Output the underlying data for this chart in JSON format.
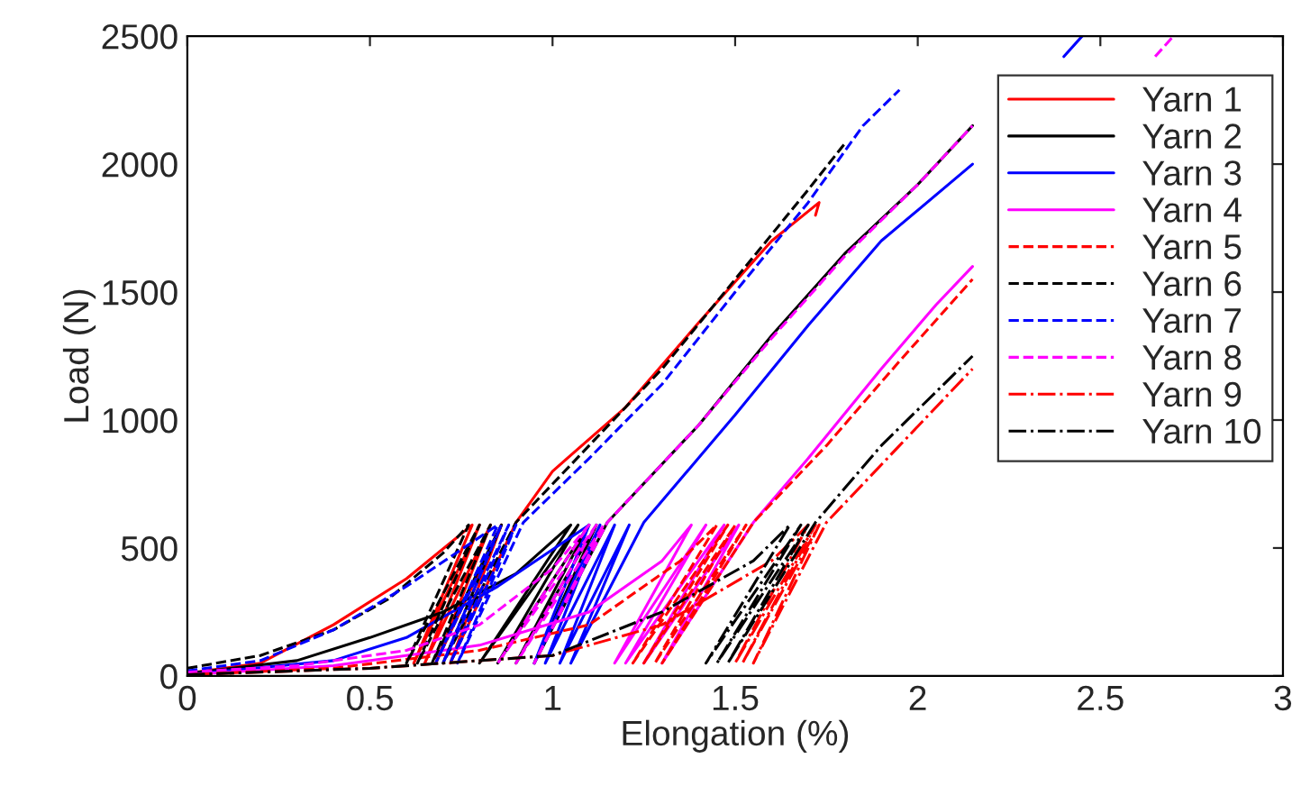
{
  "chart_data": {
    "type": "line",
    "xlabel": "Elongation (%)",
    "ylabel": "Load (N)",
    "xlim": [
      0,
      3
    ],
    "ylim": [
      0,
      2500
    ],
    "xticks": [
      0,
      0.5,
      1,
      1.5,
      2,
      2.5,
      3
    ],
    "yticks": [
      0,
      500,
      1000,
      1500,
      2000,
      2500
    ],
    "grid": false,
    "legend": "top right",
    "series": [
      {
        "name": "Yarn 1",
        "color": "#ff0000",
        "line_style": "solid",
        "x": [
          0,
          0.2,
          0.4,
          0.6,
          0.78,
          0.62,
          0.8,
          0.65,
          0.83,
          0.68,
          0.86,
          0.72,
          0.9,
          1.0,
          1.2,
          1.4,
          1.6,
          1.73,
          1.72
        ],
        "values": [
          10,
          50,
          200,
          380,
          590,
          50,
          590,
          50,
          590,
          50,
          590,
          50,
          600,
          800,
          1050,
          1380,
          1700,
          1850,
          1800
        ]
      },
      {
        "name": "Yarn 2",
        "color": "#000000",
        "line_style": "solid",
        "x": [
          0,
          0.3,
          0.5,
          0.7,
          0.9,
          1.05,
          0.8,
          1.07,
          0.85,
          1.1,
          0.9,
          1.12,
          0.95,
          1.15,
          1.4,
          1.6,
          1.8,
          2.0,
          2.15
        ],
        "values": [
          10,
          60,
          150,
          250,
          400,
          590,
          50,
          590,
          50,
          590,
          50,
          590,
          50,
          600,
          980,
          1330,
          1650,
          1920,
          2150
        ]
      },
      {
        "name": "Yarn 3",
        "color": "#0000ff",
        "line_style": "solid",
        "x": [
          0,
          0.4,
          0.6,
          0.85,
          1.1,
          0.95,
          1.13,
          0.98,
          1.17,
          1.02,
          1.21,
          1.05,
          1.25,
          1.5,
          1.7,
          1.9,
          2.15,
          2.3,
          2.4,
          2.45
        ],
        "values": [
          5,
          60,
          150,
          350,
          590,
          50,
          590,
          50,
          590,
          50,
          590,
          50,
          600,
          1020,
          1370,
          1700,
          2000,
          null,
          2420,
          2500
        ]
      },
      {
        "name": "Yarn 4",
        "color": "#ff00ff",
        "line_style": "solid",
        "x": [
          0,
          0.4,
          0.8,
          1.1,
          1.3,
          1.38,
          1.17,
          1.42,
          1.2,
          1.47,
          1.25,
          1.51,
          1.3,
          1.55,
          1.7,
          1.9,
          2.05,
          2.15
        ],
        "values": [
          5,
          40,
          120,
          250,
          450,
          590,
          50,
          590,
          50,
          590,
          50,
          590,
          50,
          600,
          850,
          1200,
          1450,
          1600
        ]
      },
      {
        "name": "Yarn 5",
        "color": "#ff0000",
        "line_style": "dashed",
        "x": [
          0,
          0.4,
          0.8,
          1.1,
          1.35,
          1.45,
          1.22,
          1.48,
          1.25,
          1.5,
          1.28,
          1.53,
          1.3,
          1.55,
          1.75,
          1.95,
          2.15
        ],
        "values": [
          5,
          30,
          100,
          200,
          450,
          590,
          50,
          590,
          50,
          590,
          50,
          590,
          50,
          600,
          900,
          1230,
          1550
        ]
      },
      {
        "name": "Yarn 6",
        "color": "#000000",
        "line_style": "dashed",
        "x": [
          0,
          0.2,
          0.4,
          0.55,
          0.7,
          0.77,
          0.6,
          0.8,
          0.63,
          0.83,
          0.67,
          0.86,
          0.7,
          0.9,
          1.1,
          1.3,
          1.5,
          1.7,
          1.8
        ],
        "values": [
          30,
          80,
          180,
          300,
          480,
          590,
          50,
          590,
          50,
          590,
          50,
          590,
          50,
          600,
          900,
          1200,
          1550,
          1900,
          2080
        ]
      },
      {
        "name": "Yarn 7",
        "color": "#0000ff",
        "line_style": "dashed",
        "x": [
          0,
          0.2,
          0.4,
          0.6,
          0.85,
          0.68,
          0.86,
          0.7,
          0.88,
          0.72,
          0.9,
          0.74,
          0.92,
          1.1,
          1.3,
          1.5,
          1.7,
          1.85,
          1.95
        ],
        "values": [
          20,
          60,
          180,
          350,
          590,
          50,
          590,
          50,
          590,
          50,
          590,
          50,
          600,
          850,
          1140,
          1500,
          1850,
          2150,
          2290
        ]
      },
      {
        "name": "Yarn 8",
        "color": "#ff00ff",
        "line_style": "dashed",
        "x": [
          0,
          0.3,
          0.6,
          0.8,
          1.0,
          1.1,
          0.85,
          1.12,
          0.9,
          1.14,
          0.95,
          1.15,
          1.4,
          1.6,
          1.8,
          2.0,
          2.15,
          2.4,
          2.65,
          2.7
        ],
        "values": [
          15,
          40,
          100,
          200,
          420,
          590,
          50,
          590,
          50,
          590,
          50,
          600,
          980,
          1320,
          1640,
          1920,
          2150,
          null,
          2420,
          2500
        ]
      },
      {
        "name": "Yarn 9",
        "color": "#ff0000",
        "line_style": "dashdot",
        "x": [
          0,
          0.5,
          1.0,
          1.3,
          1.6,
          1.7,
          1.5,
          1.72,
          1.52,
          1.73,
          1.55,
          1.75,
          1.95,
          2.15
        ],
        "values": [
          5,
          30,
          80,
          200,
          450,
          590,
          50,
          590,
          50,
          590,
          50,
          600,
          900,
          1200
        ]
      },
      {
        "name": "Yarn 10",
        "color": "#000000",
        "line_style": "dashdot",
        "x": [
          0,
          0.5,
          1.0,
          1.3,
          1.55,
          1.65,
          1.42,
          1.68,
          1.45,
          1.7,
          1.48,
          1.72,
          1.9,
          2.15
        ],
        "values": [
          5,
          30,
          80,
          250,
          450,
          590,
          50,
          590,
          50,
          590,
          50,
          600,
          900,
          1250
        ]
      }
    ]
  }
}
